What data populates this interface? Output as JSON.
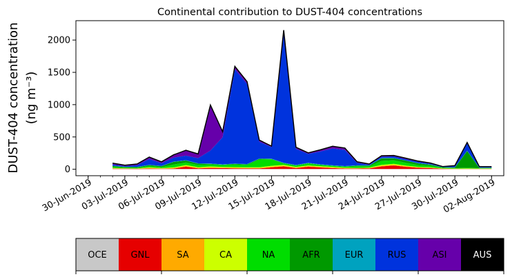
{
  "chart_data": {
    "type": "area",
    "stacked": true,
    "title": "Continental contribution to DUST-404 concentrations",
    "ylabel_line1": "DUST-404 concentration",
    "ylabel_line2": "(ng m⁻³)",
    "xlabel": "",
    "ylim": [
      -100,
      2300
    ],
    "yticks": [
      0,
      500,
      1000,
      1500,
      2000
    ],
    "xticks": [
      "30-Jun-2019",
      "03-Jul-2019",
      "06-Jul-2019",
      "09-Jul-2019",
      "12-Jul-2019",
      "15-Jul-2019",
      "18-Jul-2019",
      "21-Jul-2019",
      "24-Jul-2019",
      "27-Jul-2019",
      "30-Jul-2019",
      "02-Aug-2019"
    ],
    "x": [
      "2019-07-02",
      "2019-07-03",
      "2019-07-04",
      "2019-07-05",
      "2019-07-06",
      "2019-07-07",
      "2019-07-08",
      "2019-07-09",
      "2019-07-10",
      "2019-07-11",
      "2019-07-12",
      "2019-07-13",
      "2019-07-14",
      "2019-07-15",
      "2019-07-16",
      "2019-07-17",
      "2019-07-18",
      "2019-07-19",
      "2019-07-20",
      "2019-07-21",
      "2019-07-22",
      "2019-07-23",
      "2019-07-24",
      "2019-07-25",
      "2019-07-26",
      "2019-07-27",
      "2019-07-28",
      "2019-07-29",
      "2019-07-30",
      "2019-07-31",
      "2019-08-01",
      "2019-08-02"
    ],
    "series": [
      {
        "name": "OCE",
        "color": "#c8c8c8",
        "values": [
          5,
          3,
          2,
          3,
          3,
          3,
          5,
          4,
          4,
          3,
          5,
          3,
          3,
          4,
          4,
          3,
          4,
          3,
          3,
          3,
          3,
          3,
          4,
          4,
          3,
          3,
          3,
          2,
          2,
          2,
          2,
          2
        ]
      },
      {
        "name": "GNL",
        "color": "#e60000",
        "values": [
          5,
          5,
          5,
          8,
          5,
          8,
          35,
          10,
          15,
          15,
          10,
          10,
          10,
          25,
          40,
          15,
          35,
          25,
          15,
          8,
          8,
          10,
          40,
          55,
          35,
          20,
          15,
          5,
          3,
          3,
          3,
          3
        ]
      },
      {
        "name": "SA",
        "color": "#ffaa00",
        "values": [
          5,
          3,
          3,
          8,
          5,
          8,
          10,
          8,
          10,
          8,
          8,
          8,
          8,
          10,
          10,
          8,
          10,
          8,
          8,
          5,
          5,
          5,
          10,
          10,
          8,
          5,
          5,
          3,
          3,
          3,
          3,
          3
        ]
      },
      {
        "name": "CA",
        "color": "#ccff00",
        "values": [
          5,
          3,
          3,
          10,
          5,
          10,
          15,
          10,
          15,
          10,
          10,
          10,
          10,
          15,
          15,
          10,
          10,
          10,
          10,
          8,
          5,
          8,
          15,
          15,
          10,
          8,
          8,
          3,
          3,
          5,
          3,
          3
        ]
      },
      {
        "name": "NA",
        "color": "#00dd00",
        "values": [
          15,
          10,
          10,
          20,
          15,
          45,
          40,
          35,
          30,
          30,
          40,
          35,
          120,
          100,
          20,
          20,
          30,
          20,
          15,
          15,
          25,
          20,
          60,
          55,
          45,
          30,
          25,
          10,
          5,
          10,
          5,
          5
        ]
      },
      {
        "name": "AFR",
        "color": "#009900",
        "values": [
          15,
          10,
          10,
          15,
          15,
          40,
          30,
          20,
          10,
          5,
          10,
          10,
          10,
          5,
          5,
          5,
          5,
          5,
          5,
          5,
          10,
          10,
          40,
          30,
          30,
          25,
          15,
          5,
          10,
          260,
          5,
          5
        ]
      },
      {
        "name": "EUR",
        "color": "#00a2bf",
        "values": [
          5,
          5,
          5,
          5,
          5,
          5,
          5,
          5,
          5,
          5,
          5,
          5,
          5,
          5,
          5,
          5,
          5,
          5,
          5,
          5,
          5,
          5,
          5,
          5,
          5,
          5,
          5,
          5,
          5,
          5,
          5,
          5
        ]
      },
      {
        "name": "RUS",
        "color": "#0033dd",
        "values": [
          20,
          10,
          25,
          90,
          40,
          60,
          70,
          80,
          200,
          420,
          1460,
          1240,
          260,
          180,
          2030,
          250,
          140,
          200,
          260,
          250,
          40,
          10,
          20,
          25,
          20,
          20,
          10,
          5,
          20,
          120,
          10,
          10
        ]
      },
      {
        "name": "ASI",
        "color": "#6600aa",
        "values": [
          15,
          10,
          15,
          25,
          20,
          40,
          80,
          60,
          700,
          80,
          40,
          30,
          20,
          10,
          20,
          20,
          10,
          20,
          30,
          25,
          10,
          5,
          10,
          10,
          10,
          5,
          5,
          2,
          3,
          5,
          2,
          2
        ]
      },
      {
        "name": "AUS",
        "color": "#000000",
        "values": [
          5,
          3,
          3,
          5,
          3,
          5,
          5,
          5,
          5,
          5,
          5,
          5,
          5,
          5,
          5,
          5,
          5,
          5,
          5,
          5,
          5,
          5,
          5,
          5,
          5,
          5,
          5,
          2,
          2,
          2,
          2,
          2
        ]
      }
    ]
  }
}
